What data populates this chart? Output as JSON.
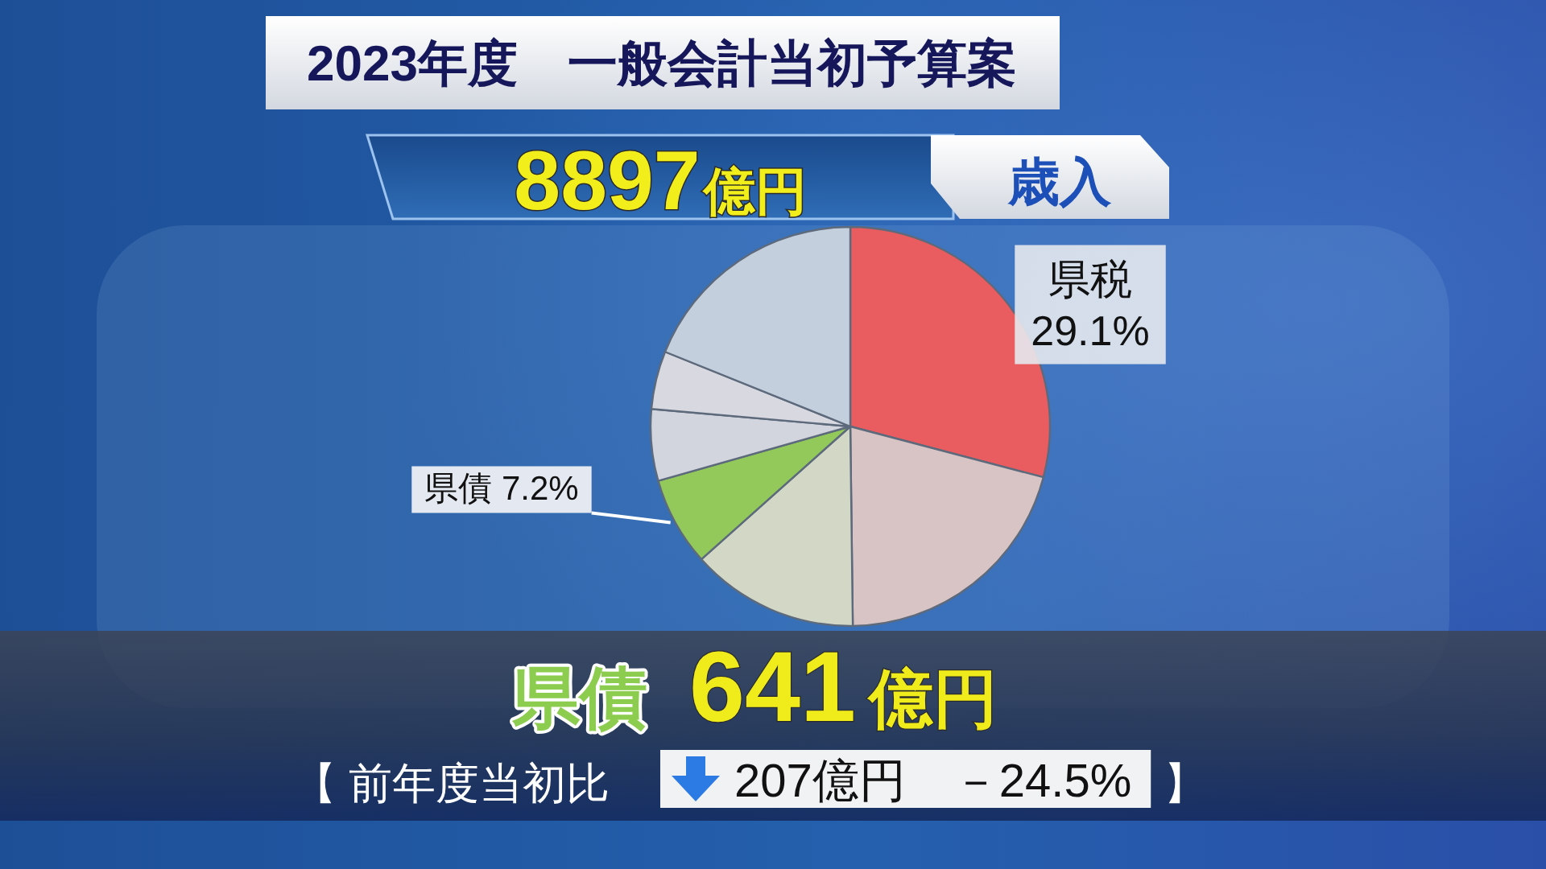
{
  "chart_data": {
    "type": "pie",
    "title": "2023年度　一般会計当初予算案",
    "categories": [
      "県税",
      null,
      null,
      "県債",
      null,
      null,
      null
    ],
    "values": [
      29.1,
      20.7,
      13.6,
      7.2,
      5.8,
      4.7,
      18.9
    ],
    "colors": [
      "#e95c5f",
      "#d8c4c4",
      "#d3d8c6",
      "#92c95a",
      "#d3d5de",
      "#d8d8e0",
      "#c4cfde"
    ],
    "value_labels": [
      "29.1%",
      null,
      null,
      "7.2%",
      null,
      null,
      null
    ],
    "annotations": [
      "8897億円",
      "歳入",
      "県債",
      "641億円",
      "【 前年度当初比",
      "207億円　－24.5%",
      "】"
    ]
  }
}
